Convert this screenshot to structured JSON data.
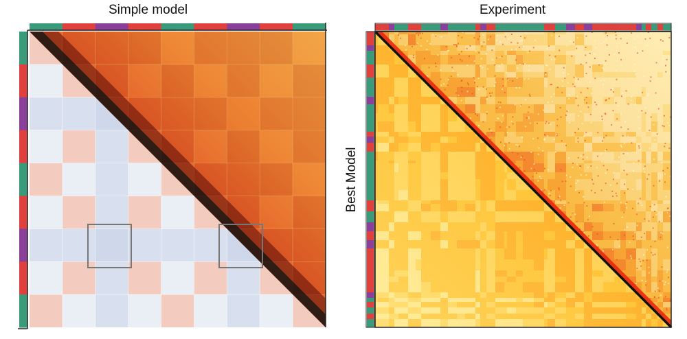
{
  "panels": [
    {
      "id": "simple-model",
      "title": "Simple model",
      "track_colors": [
        "#3a9b7a",
        "#e0413c",
        "#8a3f9a"
      ],
      "segment_pattern": [
        "green",
        "red",
        "purple",
        "red",
        "green",
        "red",
        "purple",
        "red",
        "green"
      ],
      "upper_triangle_palette": [
        "#d93a24",
        "#ee8a33",
        "#f6b451"
      ],
      "lower_triangle_palette": [
        "#dbe4f2",
        "#f0eeee",
        "#f7cfc3"
      ],
      "highlighted_regions": 2
    },
    {
      "id": "experiment",
      "title": "Experiment",
      "ylabel": "Best Model",
      "track_colors": [
        "#3a9b7a",
        "#e0413c",
        "#8a3f9a"
      ],
      "upper_triangle_palette": [
        "#e73a22",
        "#f6b43a",
        "#fff2b0"
      ],
      "lower_triangle_palette": [
        "#ff6a1a",
        "#ffc233",
        "#fff3a6"
      ]
    }
  ]
}
